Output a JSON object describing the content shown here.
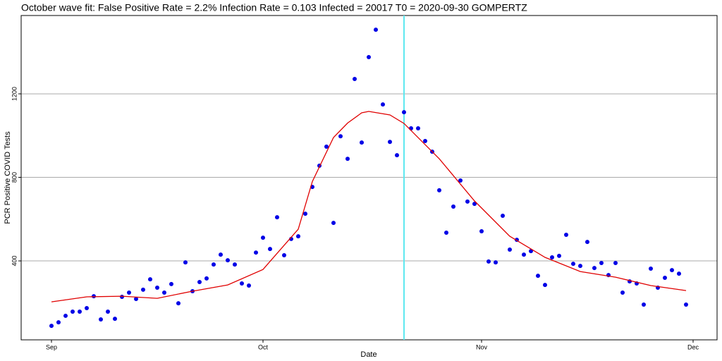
{
  "chart_data": {
    "type": "scatter",
    "title": "October wave fit: False Positive Rate = 2.2% Infection Rate = 0.103 Infected = 20017 T0 = 2020-09-30 GOMPERTZ",
    "xlabel": "Date",
    "ylabel": "PCR Positive COVID Tests",
    "xlim": [
      -4.3,
      94.4
    ],
    "ylim": [
      22,
      1575
    ],
    "xticks": [
      {
        "value": 0,
        "label": "Sep"
      },
      {
        "value": 30,
        "label": "Oct"
      },
      {
        "value": 61,
        "label": "Nov"
      },
      {
        "value": 91,
        "label": "Dec"
      }
    ],
    "yticks": [
      400,
      800,
      1200
    ],
    "grid": true,
    "vline": {
      "x": 50,
      "color": "#5ee8f0"
    },
    "series": [
      {
        "type": "scatter",
        "color": "#0000e6",
        "x": [
          0,
          1,
          2,
          3,
          4,
          5,
          6,
          7,
          8,
          9,
          10,
          11,
          12,
          13,
          14,
          15,
          16,
          17,
          18,
          19,
          20,
          21,
          22,
          23,
          24,
          25,
          26,
          27,
          28,
          29,
          30,
          31,
          32,
          33,
          34,
          35,
          36,
          37,
          38,
          39,
          40,
          41,
          42,
          43,
          44,
          45,
          46,
          47,
          48,
          49,
          50,
          51,
          52,
          53,
          54,
          55,
          56,
          57,
          58,
          59,
          60,
          61,
          62,
          63,
          64,
          65,
          66,
          67,
          68,
          69,
          70,
          71,
          72,
          73,
          74,
          75,
          76,
          77,
          78,
          79,
          80,
          81,
          82,
          83,
          84,
          85,
          86,
          87,
          88,
          89,
          90
        ],
        "values": [
          89,
          106,
          137,
          157,
          157,
          174,
          231,
          120,
          157,
          123,
          228,
          248,
          218,
          262,
          312,
          272,
          248,
          289,
          197,
          393,
          255,
          299,
          316,
          383,
          430,
          403,
          383,
          292,
          282,
          440,
          511,
          457,
          609,
          427,
          505,
          518,
          626,
          754,
          856,
          947,
          582,
          997,
          889,
          1271,
          967,
          1376,
          1507,
          1149,
          970,
          906,
          1112,
          1035,
          1035,
          974,
          923,
          738,
          535,
          660,
          785,
          684,
          673,
          542,
          397,
          393,
          616,
          454,
          501,
          430,
          447,
          329,
          285,
          417,
          424,
          525,
          386,
          376,
          491,
          366,
          390,
          332,
          390,
          248,
          302,
          292,
          191,
          363,
          272,
          319,
          356,
          339,
          191
        ]
      },
      {
        "type": "line",
        "color": "#e00000",
        "x": [
          0,
          5,
          10,
          15,
          20,
          25,
          30,
          35,
          37,
          40,
          42,
          44,
          45,
          48,
          50,
          55,
          60,
          65,
          70,
          75,
          80,
          85,
          90
        ],
        "values": [
          204,
          228,
          231,
          221,
          255,
          285,
          359,
          552,
          780,
          991,
          1060,
          1109,
          1116,
          1099,
          1058,
          889,
          687,
          518,
          417,
          349,
          322,
          282,
          258
        ]
      }
    ]
  }
}
